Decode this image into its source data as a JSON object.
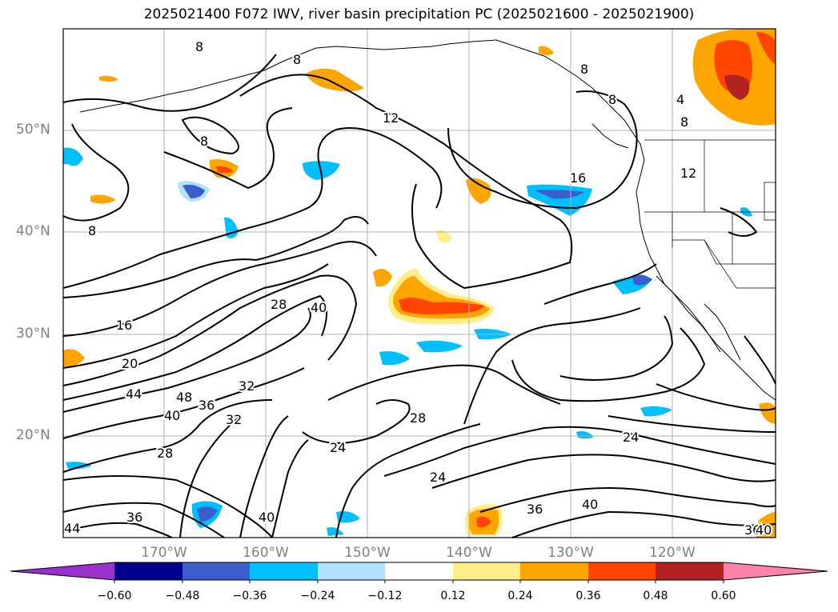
{
  "title": "2025021400 F072 IWV, river basin precipitation PC (2025021600 - 2025021900)",
  "latitude_labels": [
    "50°N",
    "40°N",
    "30°N",
    "20°N"
  ],
  "longitude_labels": [
    "170°W",
    "160°W",
    "150°W",
    "140°W",
    "130°W",
    "120°W"
  ],
  "contour_labels": [
    "8",
    "8",
    "8",
    "8",
    "8",
    "8",
    "4",
    "8",
    "12",
    "12",
    "16",
    "16",
    "20",
    "28",
    "40",
    "44",
    "48",
    "36",
    "32",
    "40",
    "32",
    "28",
    "24",
    "28",
    "24",
    "24",
    "36",
    "40",
    "36",
    "40",
    "44",
    "36",
    "40"
  ],
  "colorbar": {
    "ticks": [
      "−0.60",
      "−0.48",
      "−0.36",
      "−0.24",
      "−0.12",
      "0.12",
      "0.24",
      "0.36",
      "0.48",
      "0.60"
    ],
    "colors": [
      "#9932CC",
      "#00008B",
      "#3A5FCD",
      "#00BFFF",
      "#B0E2FF",
      "#FFFFFF",
      "#FFEC8B",
      "#FFA500",
      "#FF4500",
      "#B22222",
      "#FF82AB"
    ]
  },
  "colors": {
    "grid": "#b0b0b0",
    "contour": "#000000",
    "axis_label": "#808080"
  }
}
